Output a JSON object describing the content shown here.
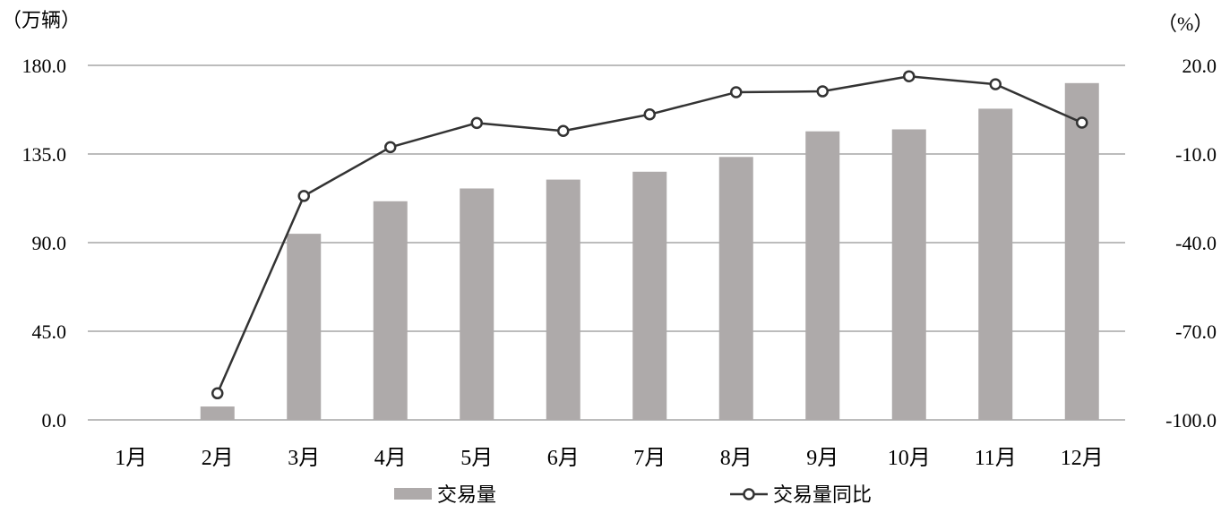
{
  "chart_data": {
    "type": "bar",
    "categories": [
      "1月",
      "2月",
      "3月",
      "4月",
      "5月",
      "6月",
      "7月",
      "8月",
      "9月",
      "10月",
      "11月",
      "12月"
    ],
    "series": [
      {
        "name": "交易量",
        "type": "bar",
        "axis": "left",
        "color": "#aeaaaa",
        "values": [
          0,
          6.8,
          94.5,
          111.0,
          117.5,
          122.0,
          126.0,
          133.5,
          146.5,
          147.5,
          158.0,
          171.0
        ]
      },
      {
        "name": "交易量同比",
        "type": "line",
        "axis": "right",
        "color": "#333333",
        "marker": "open-circle",
        "values": [
          null,
          -91.0,
          -24.2,
          -7.7,
          0.5,
          -2.2,
          3.4,
          10.9,
          11.2,
          16.3,
          13.6,
          0.6
        ]
      }
    ],
    "left_axis": {
      "unit": "（万辆）",
      "ylim": [
        0,
        180
      ],
      "ticks": [
        "0.0",
        "45.0",
        "90.0",
        "135.0",
        "180.0"
      ]
    },
    "right_axis": {
      "unit": "（%）",
      "ylim": [
        -100,
        20
      ],
      "ticks": [
        "-100.0",
        "-70.0",
        "-40.0",
        "-10.0",
        "20.0"
      ]
    },
    "grid": true,
    "gridline_color": "#a6a6a6",
    "legend": {
      "position": "bottom",
      "items": [
        "交易量",
        "交易量同比"
      ]
    }
  }
}
